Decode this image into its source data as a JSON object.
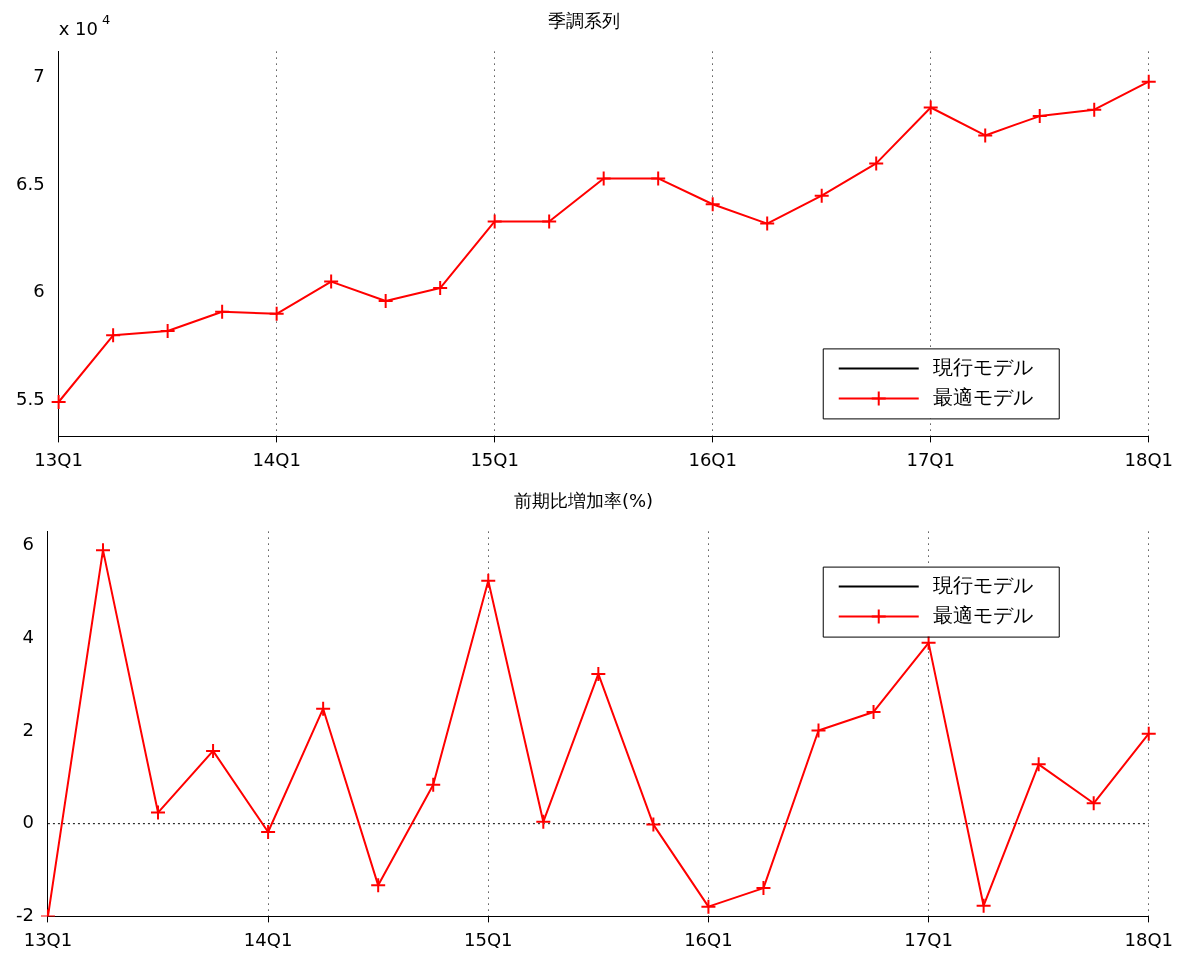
{
  "chart_data": [
    {
      "type": "line",
      "title": "季調系列",
      "annotations": [
        "x 10$^{4}$"
      ],
      "categories": [
        "13Q1",
        null,
        null,
        null,
        "14Q1",
        null,
        null,
        null,
        "15Q1",
        null,
        null,
        null,
        "16Q1",
        null,
        null,
        null,
        "17Q1",
        null,
        null,
        null,
        "18Q1"
      ],
      "series": [
        {
          "name": "現行モデル",
          "color": "#000000",
          "marker": "none",
          "values": [
            null,
            null,
            null,
            null,
            null,
            null,
            null,
            null,
            null,
            null,
            null,
            null,
            null,
            null,
            null,
            null,
            null,
            null,
            null,
            null,
            null
          ]
        },
        {
          "name": "最適モデル",
          "color": "#ff0000",
          "marker": "cross",
          "values": [
            5.49,
            5.8,
            5.82,
            5.91,
            5.9,
            6.05,
            5.96,
            6.02,
            6.33,
            6.33,
            6.53,
            6.53,
            6.41,
            6.32,
            6.45,
            6.6,
            6.86,
            6.73,
            6.82,
            6.85,
            6.98
          ]
        }
      ],
      "ylim": [
        5.33,
        7.12
      ],
      "yticks": [
        5.5,
        6,
        6.5,
        7
      ],
      "grid": "x",
      "legend": "bottom right",
      "line_style": "solid"
    },
    {
      "type": "line",
      "title": "前期比増加率(%)",
      "categories": [
        "13Q1",
        null,
        null,
        null,
        "14Q1",
        null,
        null,
        null,
        "15Q1",
        null,
        null,
        null,
        "16Q1",
        null,
        null,
        null,
        "17Q1",
        null,
        null,
        null,
        "18Q1"
      ],
      "series": [
        {
          "name": "現行モデル",
          "color": "#000000",
          "marker": "none",
          "values": [
            null,
            null,
            null,
            null,
            null,
            null,
            null,
            null,
            null,
            null,
            null,
            null,
            null,
            null,
            null,
            null,
            null,
            null,
            null,
            null,
            null
          ]
        },
        {
          "name": "最適モデル",
          "color": "#ff0000",
          "marker": "cross",
          "values": [
            -2,
            5.9,
            0.24,
            1.57,
            -0.18,
            2.48,
            -1.33,
            0.84,
            5.24,
            0.04,
            3.23,
            -0.02,
            -1.79,
            -1.39,
            2.01,
            2.41,
            3.9,
            -1.77,
            1.28,
            0.44,
            1.94
          ]
        }
      ],
      "ylim": [
        -2,
        6.3
      ],
      "yticks": [
        -2,
        0,
        2,
        4,
        6
      ],
      "grid": "x",
      "legend": "top right",
      "line_style": "solid",
      "ref_lines": [
        {
          "axis": "y",
          "value": 0,
          "color": "#000000",
          "line_style": "dotted"
        }
      ]
    }
  ]
}
